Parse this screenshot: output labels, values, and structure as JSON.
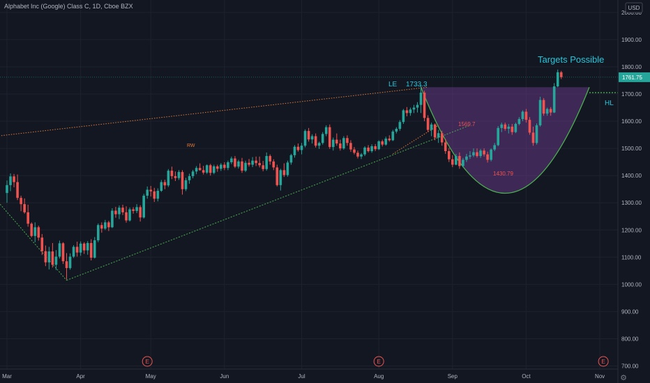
{
  "header": {
    "symbol_title": "Alphabet Inc (Google) Class C, 1D, Cboe BZX"
  },
  "currency": "USD",
  "last_price_label": "1761.75",
  "colors": {
    "background": "#131722",
    "grid": "#1e222d",
    "up": "#26a69a",
    "down": "#ef5350",
    "cup_line": "#4caf50",
    "cup_fill": "#6a3a8a",
    "trend_line_orange": "#e07b39",
    "support_line_green": "#4caf50",
    "annotation_teal": "#26c6da",
    "annotation_red": "#ef5350",
    "axis_text": "#b2b5be"
  },
  "annotations": {
    "targets": "Targets Possible",
    "hl": "HL",
    "le": "LE",
    "le_value": "1733.3",
    "cup_mid": "1569.7",
    "cup_low": "1430.79",
    "rw": "RW"
  },
  "earnings_marker": "E",
  "chart_data": {
    "type": "candlestick",
    "title": "Alphabet Inc (Google) Class C, 1D, Cboe BZX",
    "ylim": [
      690,
      2010
    ],
    "y_ticks": [
      700,
      800,
      900,
      1000,
      1100,
      1200,
      1300,
      1400,
      1500,
      1600,
      1700,
      1800,
      1900,
      2000
    ],
    "y_tick_labels": [
      "700.00",
      "800.00",
      "900.00",
      "1000.00",
      "1100.00",
      "1200.00",
      "1300.00",
      "1400.00",
      "1500.00",
      "1600.00",
      "1700.00",
      "1800.00",
      "1900.00",
      "2000.00"
    ],
    "x_tick_labels": [
      "Mar",
      "Apr",
      "May",
      "Jun",
      "Jul",
      "Aug",
      "Sep",
      "Oct",
      "Nov"
    ],
    "x_tick_bar_index": [
      0,
      21,
      41,
      62,
      84,
      106,
      127,
      148,
      169
    ],
    "earnings_bar_index": [
      40,
      106,
      170
    ],
    "last_price": 1761.75,
    "hl_level": 1705,
    "cup_rim_level": 1725,
    "grid": true,
    "trendlines": [
      {
        "name": "upper-resistance",
        "from": [
          -3,
          1545
        ],
        "to": [
          120,
          1725
        ]
      },
      {
        "name": "lower-support",
        "from": [
          17,
          1015
        ],
        "to": [
          132,
          1585
        ]
      },
      {
        "name": "crash-leg",
        "from": [
          -3,
          1310
        ],
        "to": [
          17,
          1015
        ]
      }
    ],
    "candles": [
      [
        1336,
        1382,
        1300,
        1365
      ],
      [
        1365,
        1408,
        1343,
        1397
      ],
      [
        1397,
        1406,
        1357,
        1376
      ],
      [
        1376,
        1404,
        1310,
        1318
      ],
      [
        1318,
        1326,
        1269,
        1295
      ],
      [
        1295,
        1316,
        1260,
        1265
      ],
      [
        1265,
        1293,
        1212,
        1223
      ],
      [
        1223,
        1228,
        1173,
        1178
      ],
      [
        1178,
        1228,
        1155,
        1210
      ],
      [
        1210,
        1216,
        1161,
        1172
      ],
      [
        1172,
        1185,
        1108,
        1122
      ],
      [
        1122,
        1143,
        1067,
        1081
      ],
      [
        1081,
        1138,
        1055,
        1121
      ],
      [
        1121,
        1152,
        1062,
        1072
      ],
      [
        1072,
        1126,
        1053,
        1102
      ],
      [
        1102,
        1161,
        1095,
        1151
      ],
      [
        1151,
        1155,
        1075,
        1085
      ],
      [
        1085,
        1115,
        1018,
        1060
      ],
      [
        1060,
        1114,
        1054,
        1102
      ],
      [
        1102,
        1144,
        1097,
        1138
      ],
      [
        1138,
        1157,
        1102,
        1117
      ],
      [
        1117,
        1158,
        1105,
        1150
      ],
      [
        1150,
        1155,
        1112,
        1125
      ],
      [
        1125,
        1159,
        1109,
        1152
      ],
      [
        1152,
        1166,
        1088,
        1098
      ],
      [
        1098,
        1174,
        1095,
        1162
      ],
      [
        1162,
        1224,
        1155,
        1218
      ],
      [
        1218,
        1228,
        1190,
        1205
      ],
      [
        1205,
        1237,
        1200,
        1228
      ],
      [
        1228,
        1234,
        1196,
        1210
      ],
      [
        1210,
        1280,
        1207,
        1271
      ],
      [
        1271,
        1285,
        1245,
        1258
      ],
      [
        1258,
        1290,
        1240,
        1282
      ],
      [
        1282,
        1293,
        1255,
        1265
      ],
      [
        1265,
        1287,
        1227,
        1235
      ],
      [
        1235,
        1283,
        1231,
        1276
      ],
      [
        1276,
        1284,
        1260,
        1270
      ],
      [
        1270,
        1295,
        1262,
        1284
      ],
      [
        1284,
        1291,
        1231,
        1246
      ],
      [
        1246,
        1333,
        1242,
        1326
      ],
      [
        1326,
        1360,
        1315,
        1348
      ],
      [
        1348,
        1362,
        1323,
        1342
      ],
      [
        1342,
        1355,
        1303,
        1315
      ],
      [
        1315,
        1353,
        1305,
        1344
      ],
      [
        1344,
        1384,
        1340,
        1376
      ],
      [
        1376,
        1385,
        1350,
        1364
      ],
      [
        1364,
        1424,
        1358,
        1418
      ],
      [
        1418,
        1433,
        1387,
        1398
      ],
      [
        1398,
        1415,
        1380,
        1391
      ],
      [
        1391,
        1420,
        1384,
        1413
      ],
      [
        1413,
        1420,
        1330,
        1350
      ],
      [
        1350,
        1392,
        1343,
        1383
      ],
      [
        1383,
        1407,
        1370,
        1398
      ],
      [
        1398,
        1421,
        1390,
        1415
      ],
      [
        1415,
        1435,
        1405,
        1428
      ],
      [
        1428,
        1445,
        1418,
        1420
      ],
      [
        1420,
        1436,
        1404,
        1411
      ],
      [
        1411,
        1441,
        1406,
        1438
      ],
      [
        1438,
        1443,
        1400,
        1410
      ],
      [
        1410,
        1440,
        1405,
        1434
      ],
      [
        1434,
        1440,
        1414,
        1425
      ],
      [
        1425,
        1446,
        1417,
        1440
      ],
      [
        1440,
        1449,
        1420,
        1428
      ],
      [
        1428,
        1455,
        1420,
        1449
      ],
      [
        1449,
        1470,
        1442,
        1463
      ],
      [
        1463,
        1472,
        1428,
        1433
      ],
      [
        1433,
        1458,
        1426,
        1452
      ],
      [
        1452,
        1465,
        1410,
        1418
      ],
      [
        1418,
        1455,
        1413,
        1447
      ],
      [
        1447,
        1461,
        1433,
        1440
      ],
      [
        1440,
        1468,
        1431,
        1455
      ],
      [
        1455,
        1470,
        1435,
        1446
      ],
      [
        1446,
        1470,
        1430,
        1438
      ],
      [
        1438,
        1454,
        1416,
        1424
      ],
      [
        1424,
        1485,
        1418,
        1472
      ],
      [
        1472,
        1478,
        1440,
        1452
      ],
      [
        1452,
        1460,
        1420,
        1430
      ],
      [
        1430,
        1440,
        1360,
        1365
      ],
      [
        1365,
        1425,
        1345,
        1420
      ],
      [
        1420,
        1445,
        1395,
        1402
      ],
      [
        1402,
        1455,
        1396,
        1448
      ],
      [
        1448,
        1480,
        1440,
        1475
      ],
      [
        1475,
        1512,
        1466,
        1506
      ],
      [
        1506,
        1518,
        1488,
        1494
      ],
      [
        1494,
        1520,
        1478,
        1510
      ],
      [
        1510,
        1570,
        1504,
        1564
      ],
      [
        1564,
        1575,
        1525,
        1533
      ],
      [
        1533,
        1552,
        1518,
        1545
      ],
      [
        1545,
        1555,
        1503,
        1510
      ],
      [
        1510,
        1525,
        1498,
        1520
      ],
      [
        1520,
        1560,
        1514,
        1553
      ],
      [
        1553,
        1585,
        1545,
        1578
      ],
      [
        1578,
        1588,
        1498,
        1505
      ],
      [
        1505,
        1540,
        1492,
        1532
      ],
      [
        1532,
        1555,
        1510,
        1518
      ],
      [
        1518,
        1532,
        1492,
        1500
      ],
      [
        1500,
        1545,
        1495,
        1538
      ],
      [
        1538,
        1548,
        1510,
        1520
      ],
      [
        1520,
        1530,
        1487,
        1496
      ],
      [
        1496,
        1505,
        1478,
        1484
      ],
      [
        1484,
        1492,
        1463,
        1470
      ],
      [
        1470,
        1483,
        1461,
        1478
      ],
      [
        1478,
        1508,
        1472,
        1503
      ],
      [
        1503,
        1512,
        1485,
        1490
      ],
      [
        1490,
        1515,
        1484,
        1508
      ],
      [
        1508,
        1516,
        1490,
        1497
      ],
      [
        1497,
        1530,
        1494,
        1526
      ],
      [
        1526,
        1532,
        1507,
        1514
      ],
      [
        1514,
        1543,
        1510,
        1536
      ],
      [
        1536,
        1548,
        1525,
        1530
      ],
      [
        1530,
        1568,
        1527,
        1562
      ],
      [
        1562,
        1578,
        1555,
        1572
      ],
      [
        1572,
        1604,
        1565,
        1597
      ],
      [
        1597,
        1645,
        1590,
        1640
      ],
      [
        1640,
        1652,
        1618,
        1630
      ],
      [
        1630,
        1650,
        1620,
        1643
      ],
      [
        1643,
        1660,
        1630,
        1650
      ],
      [
        1650,
        1670,
        1632,
        1660
      ],
      [
        1660,
        1733,
        1630,
        1705
      ],
      [
        1705,
        1712,
        1600,
        1612
      ],
      [
        1612,
        1622,
        1560,
        1568
      ],
      [
        1568,
        1595,
        1545,
        1588
      ],
      [
        1588,
        1592,
        1530,
        1540
      ],
      [
        1540,
        1568,
        1520,
        1556
      ],
      [
        1556,
        1565,
        1510,
        1522
      ],
      [
        1522,
        1535,
        1480,
        1490
      ],
      [
        1490,
        1502,
        1450,
        1460
      ],
      [
        1460,
        1475,
        1431,
        1440
      ],
      [
        1440,
        1480,
        1438,
        1472
      ],
      [
        1472,
        1485,
        1425,
        1435
      ],
      [
        1435,
        1465,
        1430,
        1458
      ],
      [
        1458,
        1480,
        1450,
        1470
      ],
      [
        1470,
        1490,
        1462,
        1474
      ],
      [
        1474,
        1500,
        1468,
        1486
      ],
      [
        1486,
        1500,
        1466,
        1472
      ],
      [
        1472,
        1498,
        1465,
        1492
      ],
      [
        1492,
        1500,
        1470,
        1478
      ],
      [
        1478,
        1488,
        1448,
        1458
      ],
      [
        1458,
        1500,
        1452,
        1496
      ],
      [
        1496,
        1520,
        1490,
        1512
      ],
      [
        1512,
        1582,
        1508,
        1575
      ],
      [
        1575,
        1595,
        1560,
        1588
      ],
      [
        1588,
        1595,
        1565,
        1572
      ],
      [
        1572,
        1590,
        1555,
        1580
      ],
      [
        1580,
        1590,
        1550,
        1560
      ],
      [
        1560,
        1595,
        1556,
        1590
      ],
      [
        1590,
        1615,
        1585,
        1608
      ],
      [
        1608,
        1640,
        1600,
        1635
      ],
      [
        1635,
        1645,
        1595,
        1605
      ],
      [
        1605,
        1615,
        1550,
        1558
      ],
      [
        1558,
        1580,
        1510,
        1520
      ],
      [
        1520,
        1592,
        1514,
        1585
      ],
      [
        1585,
        1690,
        1580,
        1678
      ],
      [
        1678,
        1685,
        1620,
        1628
      ],
      [
        1628,
        1650,
        1620,
        1645
      ],
      [
        1645,
        1652,
        1620,
        1632
      ],
      [
        1632,
        1740,
        1630,
        1728
      ],
      [
        1728,
        1790,
        1725,
        1780
      ],
      [
        1780,
        1785,
        1755,
        1762
      ]
    ]
  }
}
